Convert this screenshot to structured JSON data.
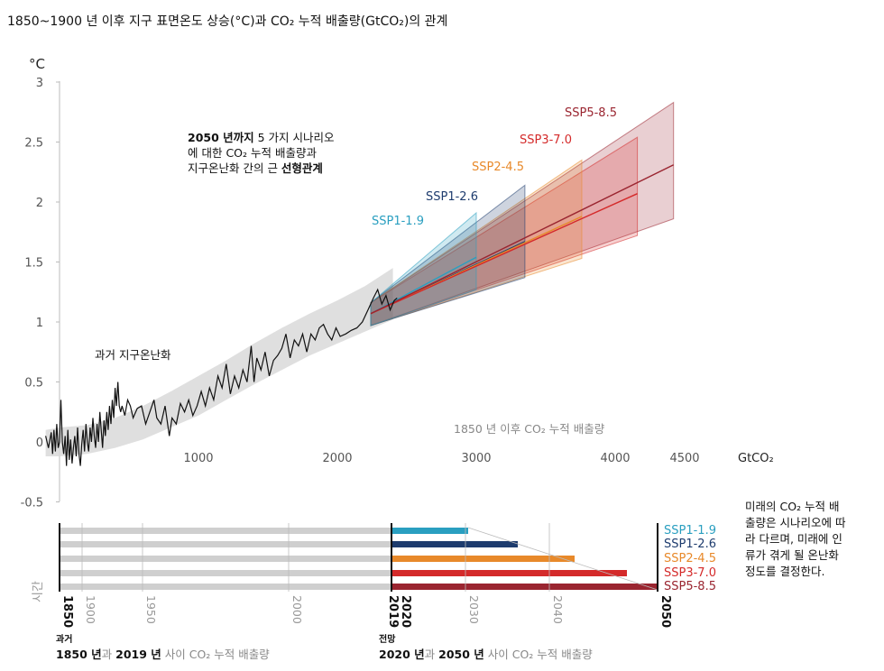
{
  "title": "1850~1900 년 이후 지구 표면온도 상승(°C)과 CO₂ 누적 배출량(GtCO₂)의 관계",
  "chart_data": {
    "type": "line",
    "ylabel": "°C",
    "xunit": "GtCO₂",
    "xlim": [
      0,
      4500
    ],
    "ylim": [
      -0.5,
      3
    ],
    "yticks": [
      "-0.5",
      "0",
      "0.5",
      "1",
      "1.5",
      "2",
      "2.5",
      "3"
    ],
    "xticks": [
      "1000",
      "2000",
      "3000",
      "4000",
      "4500"
    ],
    "x_axis_caption": "1850 년 이후 CO₂ 누적 배출량",
    "historical_label": "과거 지구온난화",
    "annotation": {
      "bold_part": "2050 년까지",
      "line1_rest": " 5 가지 시나리오",
      "line2": "에 대한 CO₂ 누적 배출량과",
      "line3_plain": "지구온난화 간의 근 ",
      "line3_bold": "선형관계"
    },
    "historical_band": [
      [
        -100,
        -0.12,
        0.1
      ],
      [
        0,
        -0.12,
        0.12
      ],
      [
        200,
        -0.1,
        0.14
      ],
      [
        400,
        -0.05,
        0.2
      ],
      [
        600,
        0.02,
        0.3
      ],
      [
        800,
        0.12,
        0.42
      ],
      [
        1000,
        0.22,
        0.55
      ],
      [
        1200,
        0.35,
        0.68
      ],
      [
        1400,
        0.48,
        0.82
      ],
      [
        1600,
        0.6,
        0.95
      ],
      [
        1800,
        0.72,
        1.07
      ],
      [
        2000,
        0.82,
        1.18
      ],
      [
        2200,
        0.92,
        1.3
      ],
      [
        2400,
        1.02,
        1.45
      ]
    ],
    "historical": [
      [
        -100,
        0.05
      ],
      [
        -80,
        -0.05
      ],
      [
        -60,
        0.08
      ],
      [
        -50,
        -0.1
      ],
      [
        -40,
        0.1
      ],
      [
        -30,
        -0.08
      ],
      [
        -20,
        0.15
      ],
      [
        -10,
        -0.05
      ],
      [
        0,
        0.0
      ],
      [
        10,
        0.35
      ],
      [
        20,
        0.0
      ],
      [
        30,
        -0.1
      ],
      [
        40,
        0.05
      ],
      [
        50,
        -0.2
      ],
      [
        60,
        0.1
      ],
      [
        70,
        -0.15
      ],
      [
        80,
        0.02
      ],
      [
        90,
        -0.18
      ],
      [
        100,
        -0.05
      ],
      [
        110,
        0.05
      ],
      [
        120,
        -0.12
      ],
      [
        130,
        0.12
      ],
      [
        140,
        -0.1
      ],
      [
        150,
        -0.2
      ],
      [
        160,
        -0.02
      ],
      [
        170,
        0.1
      ],
      [
        180,
        -0.08
      ],
      [
        190,
        0.15
      ],
      [
        200,
        0.0
      ],
      [
        210,
        -0.08
      ],
      [
        220,
        0.12
      ],
      [
        230,
        0.0
      ],
      [
        240,
        0.2
      ],
      [
        250,
        0.05
      ],
      [
        260,
        -0.05
      ],
      [
        270,
        0.15
      ],
      [
        280,
        0.0
      ],
      [
        290,
        0.25
      ],
      [
        300,
        0.1
      ],
      [
        310,
        -0.05
      ],
      [
        320,
        0.18
      ],
      [
        330,
        0.05
      ],
      [
        340,
        0.25
      ],
      [
        350,
        0.1
      ],
      [
        360,
        0.3
      ],
      [
        370,
        0.15
      ],
      [
        380,
        0.35
      ],
      [
        390,
        0.2
      ],
      [
        400,
        0.45
      ],
      [
        410,
        0.3
      ],
      [
        420,
        0.5
      ],
      [
        430,
        0.3
      ],
      [
        440,
        0.25
      ],
      [
        450,
        0.3
      ],
      [
        470,
        0.22
      ],
      [
        490,
        0.35
      ],
      [
        510,
        0.3
      ],
      [
        530,
        0.2
      ],
      [
        560,
        0.28
      ],
      [
        590,
        0.3
      ],
      [
        620,
        0.15
      ],
      [
        650,
        0.25
      ],
      [
        680,
        0.35
      ],
      [
        700,
        0.2
      ],
      [
        730,
        0.15
      ],
      [
        760,
        0.3
      ],
      [
        790,
        0.05
      ],
      [
        810,
        0.2
      ],
      [
        840,
        0.15
      ],
      [
        870,
        0.32
      ],
      [
        900,
        0.25
      ],
      [
        930,
        0.35
      ],
      [
        960,
        0.22
      ],
      [
        990,
        0.3
      ],
      [
        1020,
        0.42
      ],
      [
        1050,
        0.3
      ],
      [
        1080,
        0.45
      ],
      [
        1110,
        0.35
      ],
      [
        1140,
        0.55
      ],
      [
        1170,
        0.45
      ],
      [
        1200,
        0.65
      ],
      [
        1230,
        0.4
      ],
      [
        1260,
        0.55
      ],
      [
        1290,
        0.45
      ],
      [
        1320,
        0.6
      ],
      [
        1350,
        0.5
      ],
      [
        1380,
        0.8
      ],
      [
        1400,
        0.5
      ],
      [
        1420,
        0.7
      ],
      [
        1450,
        0.6
      ],
      [
        1480,
        0.75
      ],
      [
        1510,
        0.55
      ],
      [
        1540,
        0.68
      ],
      [
        1570,
        0.72
      ],
      [
        1600,
        0.78
      ],
      [
        1630,
        0.9
      ],
      [
        1660,
        0.7
      ],
      [
        1690,
        0.85
      ],
      [
        1720,
        0.8
      ],
      [
        1750,
        0.9
      ],
      [
        1780,
        0.75
      ],
      [
        1810,
        0.9
      ],
      [
        1840,
        0.85
      ],
      [
        1870,
        0.95
      ],
      [
        1900,
        0.98
      ],
      [
        1930,
        0.9
      ],
      [
        1960,
        0.85
      ],
      [
        1990,
        0.95
      ],
      [
        2020,
        0.88
      ],
      [
        2060,
        0.9
      ],
      [
        2100,
        0.93
      ],
      [
        2140,
        0.95
      ],
      [
        2180,
        1.0
      ],
      [
        2220,
        1.1
      ],
      [
        2260,
        1.2
      ],
      [
        2290,
        1.27
      ],
      [
        2320,
        1.15
      ],
      [
        2350,
        1.22
      ],
      [
        2380,
        1.1
      ],
      [
        2410,
        1.18
      ],
      [
        2430,
        1.2
      ]
    ],
    "scenarios": [
      {
        "name": "SSP1-1.9",
        "color": "#2a9fc0",
        "x_end": 3000,
        "center": [
          [
            2240,
            1.07
          ],
          [
            3000,
            1.54
          ]
        ],
        "band_low": [
          [
            2240,
            0.97
          ],
          [
            3000,
            1.27
          ]
        ],
        "band_high": [
          [
            2240,
            1.16
          ],
          [
            3000,
            1.91
          ]
        ]
      },
      {
        "name": "SSP1-2.6",
        "color": "#1e3c6e",
        "x_end": 3350,
        "center": [
          [
            2240,
            1.07
          ],
          [
            3350,
            1.67
          ]
        ],
        "band_low": [
          [
            2240,
            0.97
          ],
          [
            3350,
            1.37
          ]
        ],
        "band_high": [
          [
            2240,
            1.16
          ],
          [
            3350,
            2.14
          ]
        ]
      },
      {
        "name": "SSP2-4.5",
        "color": "#e8892a",
        "x_end": 3760,
        "center": [
          [
            2240,
            1.07
          ],
          [
            3760,
            1.88
          ]
        ],
        "band_low": [
          [
            2240,
            0.97
          ],
          [
            3760,
            1.53
          ]
        ],
        "band_high": [
          [
            2240,
            1.16
          ],
          [
            3760,
            2.35
          ]
        ]
      },
      {
        "name": "SSP3-7.0",
        "color": "#d42a2a",
        "x_end": 4160,
        "center": [
          [
            2240,
            1.07
          ],
          [
            4160,
            2.07
          ]
        ],
        "band_low": [
          [
            2240,
            0.97
          ],
          [
            4160,
            1.72
          ]
        ],
        "band_high": [
          [
            2240,
            1.16
          ],
          [
            4160,
            2.54
          ]
        ]
      },
      {
        "name": "SSP5-8.5",
        "color": "#9a2530",
        "x_end": 4420,
        "center": [
          [
            2240,
            1.07
          ],
          [
            4420,
            2.31
          ]
        ],
        "band_low": [
          [
            2240,
            0.97
          ],
          [
            4420,
            1.86
          ]
        ],
        "band_high": [
          [
            2240,
            1.16
          ],
          [
            4420,
            2.83
          ]
        ]
      }
    ],
    "timeline": {
      "year_labels": [
        "1850",
        "1900",
        "1950",
        "2000",
        "2019",
        "2020",
        "2030",
        "2040",
        "2050"
      ],
      "past_label_small": "과거",
      "past_bold": "1850 년",
      "past_mid": "과 ",
      "past_bold2": "2019 년",
      "past_rest": " 사이 CO₂ 누적 배출량",
      "future_label_small": "전망",
      "future_bold": "2020 년",
      "future_mid": "과 ",
      "future_bold2": "2050 년",
      "future_rest": " 사이 CO₂ 누적 배출량",
      "time_label": "시간"
    }
  },
  "note_lines": [
    "미래의 CO₂ 누적 배",
    "출량은 시나리오에 따",
    "라 다르며, 미래에 인",
    "류가 겪게 될 온난화",
    "정도를 결정한다."
  ]
}
